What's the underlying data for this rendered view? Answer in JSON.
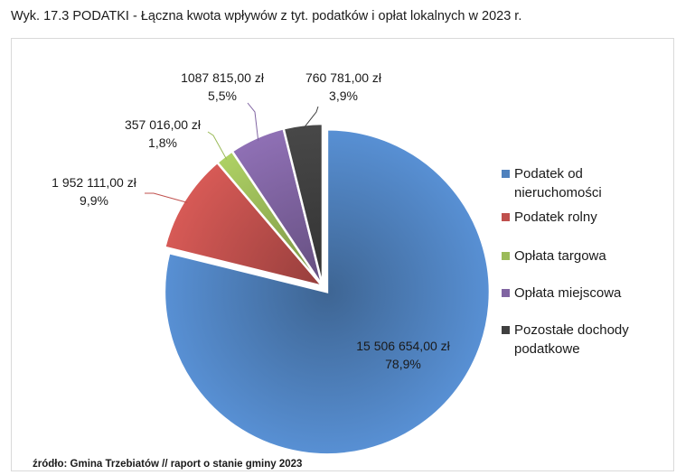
{
  "figure": {
    "title": "Wyk.  17.3 PODATKI - Łączna kwota wpływów z tyt. podatków i opłat lokalnych w 2023 r.",
    "source": "źródło: Gmina Trzebiatów // raport o stanie gminy 2023"
  },
  "chart_data": {
    "type": "pie",
    "title": "",
    "slices": [
      {
        "name": "Podatek od nieruchomości",
        "value": 15506654.0,
        "value_label": "15 506 654,00 zł",
        "percent_label": "78,9%",
        "color": "#4f81bd",
        "exploded": true
      },
      {
        "name": "Podatek rolny",
        "value": 1952111.0,
        "value_label": "1 952 111,00 zł",
        "percent_label": "9,9%",
        "color": "#c0504d",
        "exploded": false
      },
      {
        "name": "Opłata targowa",
        "value": 357016.0,
        "value_label": "357 016,00 zł",
        "percent_label": "1,8%",
        "color": "#9bbb59",
        "exploded": false
      },
      {
        "name": "Opłata miejscowa",
        "value": 1087815.0,
        "value_label": "1087 815,00 zł",
        "percent_label": "5,5%",
        "color": "#8064a2",
        "exploded": false
      },
      {
        "name": "Pozostałe dochody podatkowe",
        "value": 760781.0,
        "value_label": "760 781,00 zł",
        "percent_label": "3,9%",
        "color": "#404040",
        "exploded": false
      }
    ],
    "legend": {
      "position": "right",
      "items": [
        {
          "lines": [
            "Podatek od",
            "nieruchomości"
          ],
          "color": "#4f81bd"
        },
        {
          "lines": [
            "Podatek rolny"
          ],
          "color": "#c0504d"
        },
        {
          "lines": [
            "Opłata targowa"
          ],
          "color": "#9bbb59"
        },
        {
          "lines": [
            "Opłata miejscowa"
          ],
          "color": "#8064a2"
        },
        {
          "lines": [
            "Pozostałe dochody",
            "podatkowe"
          ],
          "color": "#404040"
        }
      ]
    }
  }
}
